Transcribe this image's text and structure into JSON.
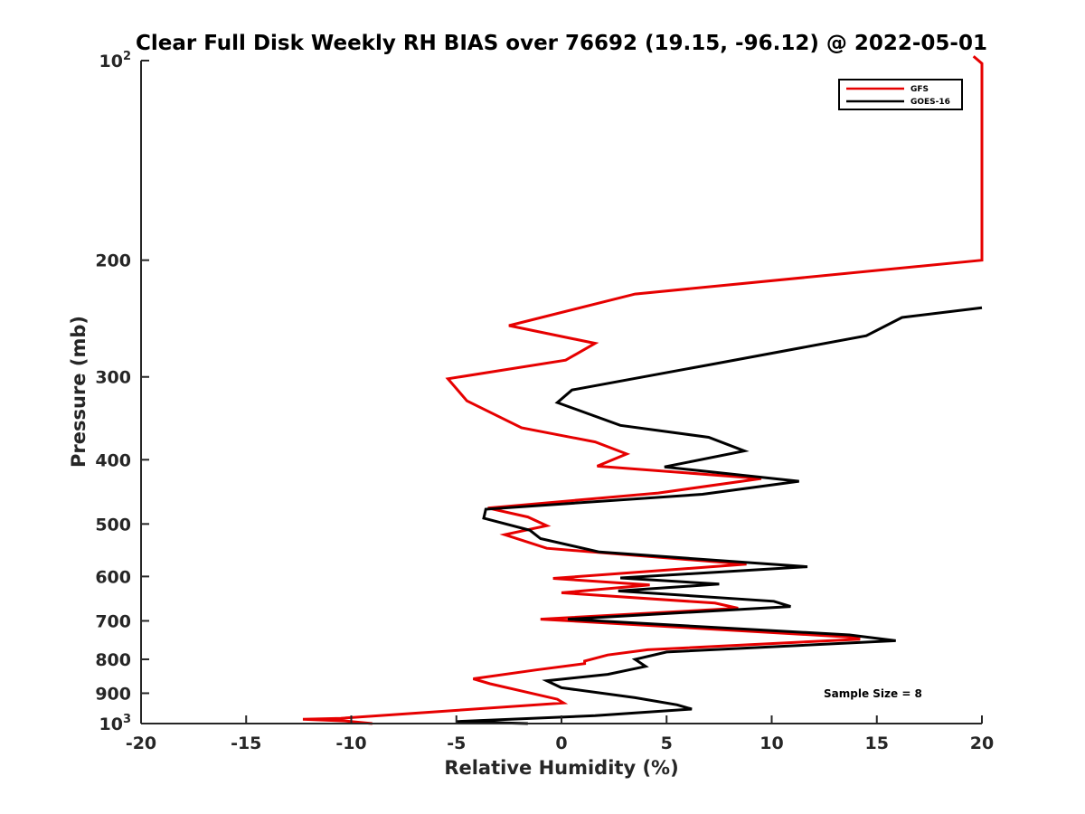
{
  "chart_data": {
    "type": "line",
    "title": "Clear Full Disk Weekly RH BIAS over 76692 (19.15, -96.12) @ 2022-05-01",
    "xlabel": "Relative Humidity (%)",
    "ylabel": "Pressure (mb)",
    "xlim": [
      -20,
      20
    ],
    "ylim": [
      100,
      1000
    ],
    "yscale": "log",
    "yreversed": true,
    "xticks": [
      "-20",
      "-15",
      "-10",
      "-5",
      "0",
      "5",
      "10",
      "15",
      "20"
    ],
    "yticks": [
      {
        "value": 100,
        "base": "10",
        "exp": "2"
      },
      {
        "value": 200,
        "label": "200"
      },
      {
        "value": 300,
        "label": "300"
      },
      {
        "value": 400,
        "label": "400"
      },
      {
        "value": 500,
        "label": "500"
      },
      {
        "value": 600,
        "label": "600"
      },
      {
        "value": 700,
        "label": "700"
      },
      {
        "value": 800,
        "label": "800"
      },
      {
        "value": 900,
        "label": "900"
      },
      {
        "value": 1000,
        "base": "10",
        "exp": "3"
      }
    ],
    "legend": {
      "position": "top-right",
      "entries": [
        "GFS",
        "GOES-16"
      ]
    },
    "annotation": "Sample Size = 8",
    "colors": {
      "GFS": "#e60000",
      "GOES-16": "#000000"
    },
    "series": [
      {
        "name": "GFS",
        "points": [
          [
            19.6,
            98.5
          ],
          [
            20,
            101
          ],
          [
            20,
            200
          ],
          [
            3.5,
            225
          ],
          [
            -2.5,
            251
          ],
          [
            1.6,
            267
          ],
          [
            0.2,
            283
          ],
          [
            -5.4,
            302
          ],
          [
            -4.5,
            326
          ],
          [
            -1.9,
            358
          ],
          [
            1.6,
            376
          ],
          [
            3.1,
            392
          ],
          [
            1.7,
            409
          ],
          [
            9.5,
            427
          ],
          [
            4.6,
            449
          ],
          [
            -3.5,
            473
          ],
          [
            -1.6,
            488
          ],
          [
            -0.7,
            503
          ],
          [
            -2.7,
            519
          ],
          [
            -0.7,
            544
          ],
          [
            8.8,
            575
          ],
          [
            -0.4,
            604
          ],
          [
            4.2,
            618
          ],
          [
            0.0,
            635
          ],
          [
            7.3,
            658
          ],
          [
            8.4,
            670
          ],
          [
            -1.0,
            696
          ],
          [
            13.9,
            741
          ],
          [
            14.2,
            746
          ],
          [
            4.1,
            774
          ],
          [
            2.2,
            788
          ],
          [
            1.1,
            805
          ],
          [
            1.1,
            812
          ],
          [
            -1.2,
            830
          ],
          [
            -4.2,
            856
          ],
          [
            -3.4,
            871
          ],
          [
            -0.2,
            919
          ],
          [
            0.1,
            931
          ],
          [
            -10.5,
            982
          ],
          [
            -12.3,
            985
          ],
          [
            -10.3,
            991
          ],
          [
            -9.0,
            1000
          ]
        ]
      },
      {
        "name": "GOES-16",
        "points": [
          [
            20,
            236
          ],
          [
            16.2,
            244
          ],
          [
            14.5,
            260
          ],
          [
            7.2,
            287
          ],
          [
            0.5,
            314
          ],
          [
            -0.2,
            328
          ],
          [
            2.8,
            355
          ],
          [
            7.0,
            370
          ],
          [
            8.7,
            388
          ],
          [
            4.9,
            410
          ],
          [
            11.3,
            431
          ],
          [
            6.7,
            451
          ],
          [
            -3.6,
            475
          ],
          [
            -3.7,
            490
          ],
          [
            -1.5,
            511
          ],
          [
            -1.0,
            526
          ],
          [
            1.8,
            551
          ],
          [
            11.7,
            580
          ],
          [
            2.8,
            603
          ],
          [
            7.5,
            616
          ],
          [
            2.7,
            631
          ],
          [
            10.1,
            654
          ],
          [
            10.9,
            666
          ],
          [
            0.3,
            696
          ],
          [
            13.7,
            735
          ],
          [
            15.9,
            750
          ],
          [
            5.0,
            780
          ],
          [
            3.5,
            800
          ],
          [
            4.0,
            820
          ],
          [
            2.2,
            843
          ],
          [
            -0.7,
            862
          ],
          [
            0.0,
            883
          ],
          [
            3.5,
            914
          ],
          [
            5.5,
            937
          ],
          [
            6.2,
            951
          ],
          [
            1.6,
            973
          ],
          [
            -5.0,
            993
          ],
          [
            -1.6,
            1000
          ]
        ]
      }
    ]
  }
}
